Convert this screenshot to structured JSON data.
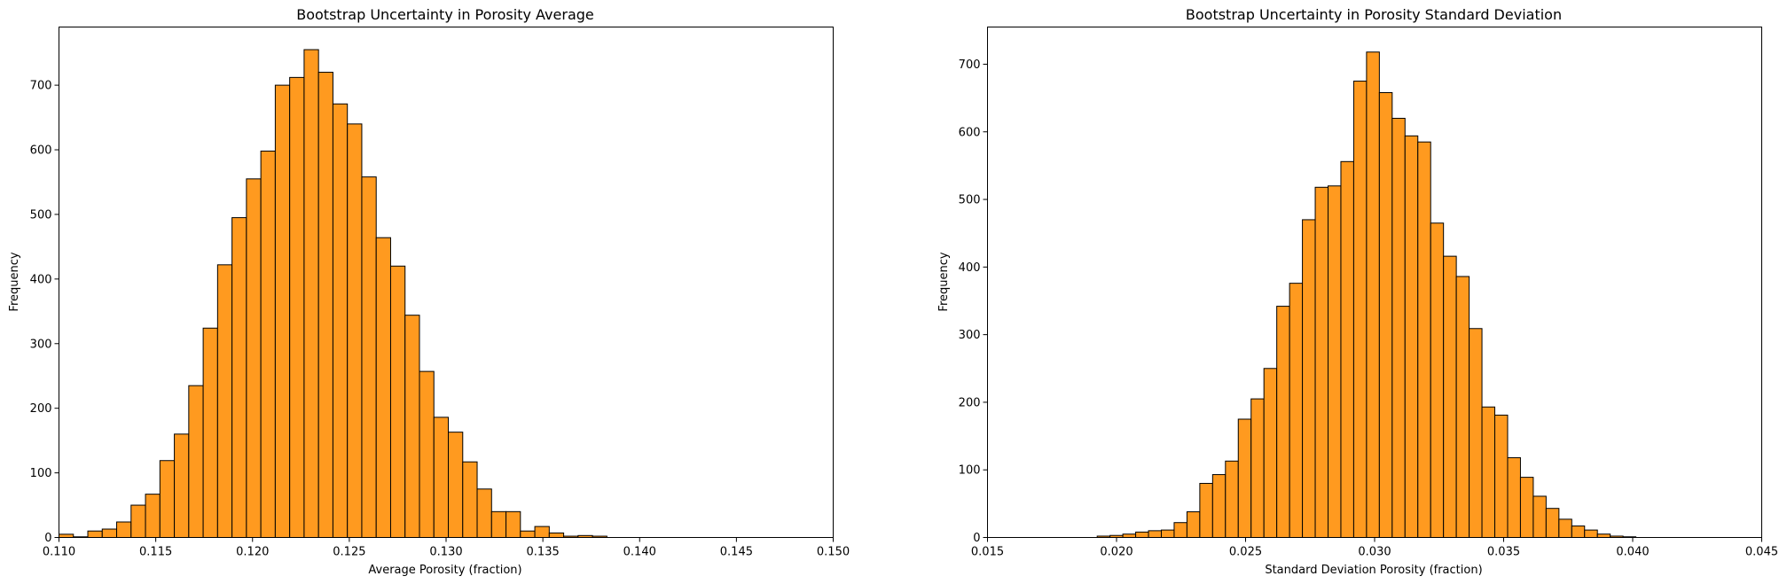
{
  "colors": {
    "bar_fill": "#ff9a1f",
    "bar_edge": "#000000",
    "background": "#ffffff"
  },
  "chart_data": [
    {
      "type": "bar",
      "title": "Bootstrap Uncertainty in Porosity Average",
      "xlabel": "Average Porosity (fraction)",
      "ylabel": "Frequency",
      "xlim": [
        0.11,
        0.15
      ],
      "ylim": [
        0,
        790
      ],
      "grid": false,
      "legend": "none",
      "xticks": [
        "0.110",
        "0.115",
        "0.120",
        "0.125",
        "0.130",
        "0.135",
        "0.140",
        "0.145",
        "0.150"
      ],
      "yticks": [
        "0",
        "100",
        "200",
        "300",
        "400",
        "500",
        "600",
        "700"
      ],
      "bins": {
        "start": 0.11,
        "width": 0.000745,
        "counts": [
          5,
          1,
          10,
          13,
          24,
          50,
          67,
          119,
          160,
          235,
          324,
          422,
          495,
          555,
          598,
          700,
          712,
          755,
          720,
          671,
          640,
          558,
          464,
          420,
          344,
          257,
          186,
          163,
          117,
          75,
          40,
          40,
          10,
          17,
          7,
          2,
          3,
          2,
          0
        ]
      }
    },
    {
      "type": "bar",
      "title": "Bootstrap Uncertainty in Porosity Standard Deviation",
      "xlabel": "Standard Deviation Porosity (fraction)",
      "ylabel": "Frequency",
      "xlim": [
        0.015,
        0.045
      ],
      "ylim": [
        0,
        755
      ],
      "grid": false,
      "legend": "none",
      "xticks": [
        "0.015",
        "0.020",
        "0.025",
        "0.030",
        "0.035",
        "0.040",
        "0.045"
      ],
      "yticks": [
        "0",
        "100",
        "200",
        "300",
        "400",
        "500",
        "600",
        "700"
      ],
      "bins": {
        "start": 0.01925,
        "width": 0.000497,
        "counts": [
          2,
          3,
          5,
          8,
          10,
          11,
          22,
          38,
          80,
          93,
          113,
          175,
          205,
          250,
          342,
          376,
          470,
          518,
          520,
          556,
          675,
          718,
          658,
          620,
          594,
          585,
          465,
          416,
          386,
          309,
          193,
          181,
          118,
          89,
          61,
          43,
          27,
          17,
          11,
          5,
          2,
          1
        ]
      }
    }
  ]
}
